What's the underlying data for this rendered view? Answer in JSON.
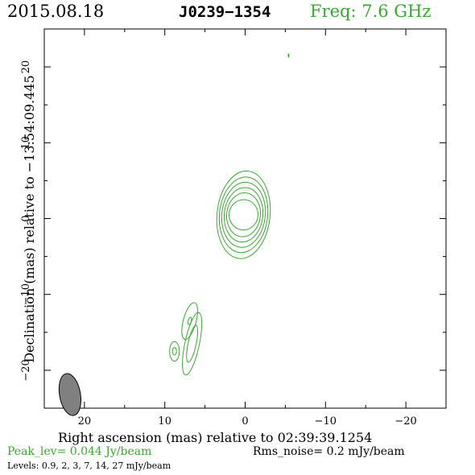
{
  "header": {
    "date": "2015.08.18",
    "source": "J0239−1354",
    "freq": "Freq: 7.6 GHz",
    "freq_color": "#3aa832"
  },
  "footer": {
    "peak": "Peak_lev=  0.044 Jy/beam",
    "peak_color": "#3aa832",
    "rms": "Rms_noise=   0.2 mJy/beam",
    "levels": "Levels: 0.9,    2,    3,    7,   14,   27 mJy/beam"
  },
  "chart_data": {
    "type": "contour",
    "title": "J0239−1354",
    "xlabel": "Right ascension (mas) relative to 02:39:39.1254",
    "ylabel": "Declination (mas) relative to −13:54:09.445",
    "xlim": [
      25,
      -25
    ],
    "ylim": [
      -25,
      25
    ],
    "xticks": [
      20,
      10,
      0,
      -10,
      -20
    ],
    "yticks": [
      20,
      10,
      0,
      -10,
      -20
    ],
    "xtick_labels": [
      "20",
      "10",
      "0",
      "−10",
      "−20"
    ],
    "ytick_labels": [
      "20",
      "10",
      "0",
      "−10",
      "−20"
    ],
    "contour_levels_mJy": [
      0.9,
      2,
      3,
      7,
      14,
      27
    ],
    "contour_color": "#3aa832",
    "components": [
      {
        "name": "core",
        "x": 0.2,
        "y": 0.5,
        "ax": [
          1.8,
          2.1,
          2.4,
          2.7,
          3.0,
          3.3
        ],
        "ay": [
          2.0,
          2.9,
          3.6,
          4.3,
          5.0,
          5.8
        ],
        "tilt_deg": 6
      },
      {
        "name": "jet-knot-1",
        "x": 6.6,
        "y": -16.5,
        "ax": [
          0.5,
          0.9
        ],
        "ay": [
          2.5,
          4.2
        ],
        "tilt_deg": 12
      },
      {
        "name": "jet-knot-2",
        "x": 6.9,
        "y": -13.5,
        "ax": [
          0.2,
          0.8
        ],
        "ay": [
          0.5,
          2.5
        ],
        "tilt_deg": 15
      },
      {
        "name": "jet-knot-3",
        "x": 8.8,
        "y": -17.5,
        "ax": [
          0.25,
          0.6
        ],
        "ay": [
          0.5,
          1.3
        ],
        "tilt_deg": 0
      },
      {
        "name": "spur",
        "x": -5.4,
        "y": 21.5,
        "ax": [
          0.05
        ],
        "ay": [
          0.2
        ],
        "tilt_deg": 0
      }
    ],
    "beam": {
      "x": 21.8,
      "y": -23.2,
      "major_mas": 2.8,
      "minor_mas": 1.3,
      "pa_deg": -10,
      "fill": "#808080"
    }
  }
}
